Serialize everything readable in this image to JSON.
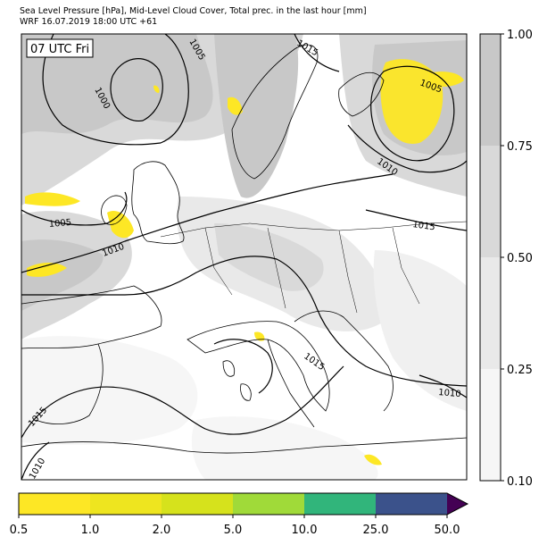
{
  "header": {
    "title_line1": "Sea Level Pressure [hPa], Mid-Level Cloud Cover, Total prec. in the last hour [mm]",
    "title_line2": "WRF 16.07.2019 18:00 UTC +61"
  },
  "map": {
    "valid_time_label": "07 UTC Fri",
    "land_color": "#ffffff",
    "coast_color": "#000000",
    "isobar_color": "#000000",
    "isobar_labels": [
      "1015",
      "1005",
      "1000",
      "1005",
      "1010",
      "1005",
      "1010",
      "1015",
      "1015",
      "1010",
      "1015",
      "1010"
    ]
  },
  "cloud_colorbar": {
    "ticks": [
      "1.00",
      "0.75",
      "0.50",
      "0.25",
      "0.10"
    ],
    "colors": [
      "#c8c8c8",
      "#d9d9d9",
      "#e9e9e9",
      "#f6f6f6"
    ]
  },
  "precip_colorbar": {
    "ticks": [
      "0.5",
      "1.0",
      "2.0",
      "5.0",
      "10.0",
      "25.0",
      "50.0"
    ],
    "colors": [
      "#fde725",
      "#eee51f",
      "#d6e21c",
      "#a0da39",
      "#31b57b",
      "#3b528b",
      "#440154"
    ]
  }
}
